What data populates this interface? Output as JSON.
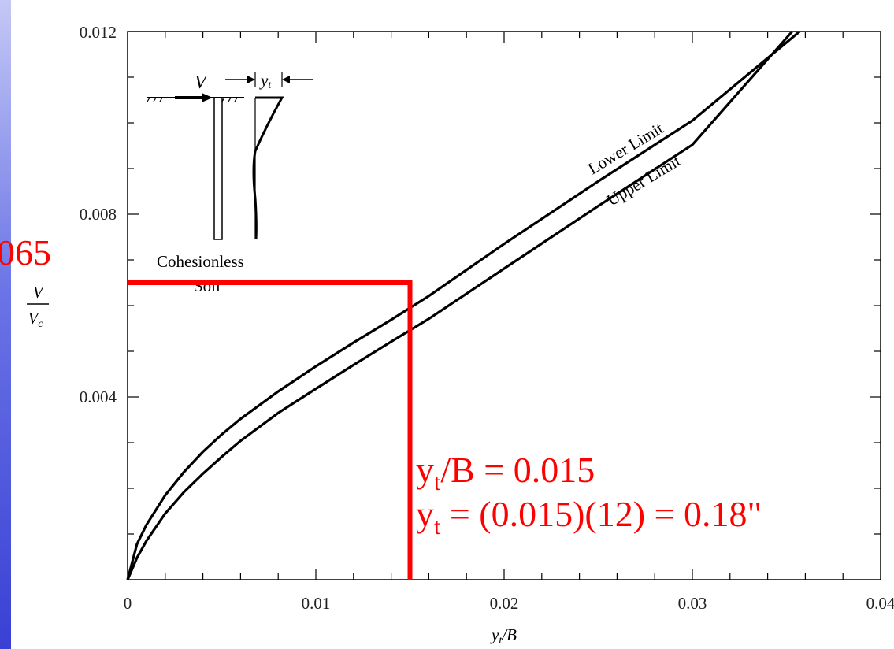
{
  "chart_data": {
    "type": "line",
    "xlabel": "y_t/B",
    "ylabel": "V/V_c",
    "xlim": [
      0,
      0.04
    ],
    "ylim": [
      0,
      0.012
    ],
    "xticks": [
      "0",
      "0.01",
      "0.02",
      "0.03",
      "0.04"
    ],
    "yticks": [
      "0.004",
      "0.008",
      "0.012"
    ],
    "grid": false,
    "series": [
      {
        "name": "Lower Limit",
        "x": [
          0,
          0.0005,
          0.001,
          0.002,
          0.003,
          0.004,
          0.005,
          0.006,
          0.008,
          0.01,
          0.012,
          0.014,
          0.016,
          0.02,
          0.025,
          0.03,
          0.0357
        ],
        "y": [
          0,
          0.00078,
          0.0012,
          0.00185,
          0.00236,
          0.0028,
          0.00318,
          0.00352,
          0.00412,
          0.00467,
          0.00519,
          0.00569,
          0.00621,
          0.00735,
          0.00872,
          0.01005,
          0.012
        ]
      },
      {
        "name": "Upper Limit",
        "x": [
          0,
          0.0005,
          0.001,
          0.002,
          0.003,
          0.004,
          0.005,
          0.006,
          0.008,
          0.01,
          0.012,
          0.014,
          0.016,
          0.02,
          0.025,
          0.03,
          0.0353
        ],
        "y": [
          0,
          0.00048,
          0.00085,
          0.00145,
          0.00192,
          0.00232,
          0.00269,
          0.00304,
          0.00365,
          0.00418,
          0.0047,
          0.00521,
          0.00571,
          0.00681,
          0.00818,
          0.00952,
          0.012
        ]
      }
    ],
    "annotations": {
      "inset_load_label": "V",
      "inset_deflection_label": "y",
      "inset_deflection_sub": "t",
      "inset_soil_line1": "Cohesionless",
      "inset_soil_line2": "Soil",
      "lower_limit_label": "Lower Limit",
      "upper_limit_label": "Upper Limit",
      "read_y_value": 0.0065,
      "read_y_label": "065",
      "read_x_value": 0.015,
      "eq1": {
        "lhs": "y",
        "sub": "t",
        "rest": "/B = 0.015"
      },
      "eq2": {
        "lhs": "y",
        "sub": "t",
        "rest": " = (0.015)(12) = 0.18\""
      }
    },
    "colors": {
      "curves": "#000000",
      "readout": "#ff0000",
      "side_bar": "#3a40d4"
    }
  }
}
